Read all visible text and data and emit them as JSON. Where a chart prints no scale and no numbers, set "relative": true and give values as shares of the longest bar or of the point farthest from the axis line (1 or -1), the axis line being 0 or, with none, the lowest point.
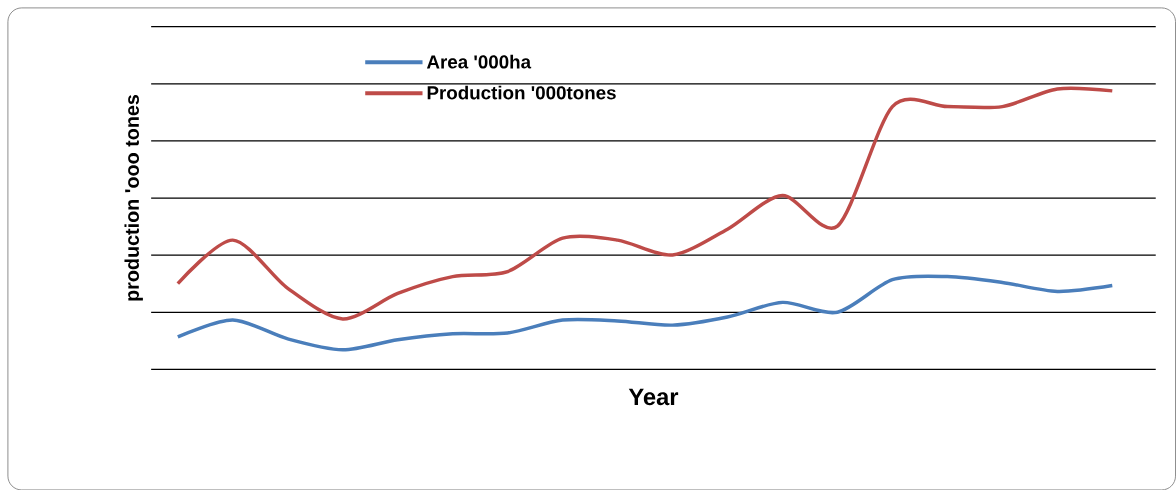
{
  "chart_data": {
    "type": "line",
    "xlabel": "Year",
    "ylabel": "production 'ooo tones",
    "relative": true,
    "grid": "y",
    "legend": "top left",
    "tick_labels": false,
    "marker": "none",
    "categories": [
      null,
      null,
      null,
      null,
      null,
      null,
      null,
      null,
      null,
      null,
      null,
      null,
      null,
      null,
      null,
      null,
      null,
      null
    ],
    "series": [
      {
        "name": "Area '000ha",
        "color": "#4a7ebb",
        "values": [
          0.116,
          0.176,
          0.109,
          0.07,
          0.106,
          0.127,
          0.13,
          0.176,
          0.173,
          0.158,
          0.187,
          0.239,
          0.204,
          0.32,
          0.331,
          0.31,
          0.278,
          0.299
        ]
      },
      {
        "name": "Production '000tones",
        "color": "#be4b48",
        "values": [
          0.306,
          0.461,
          0.289,
          0.18,
          0.271,
          0.331,
          0.349,
          0.468,
          0.461,
          0.408,
          0.5,
          0.62,
          0.511,
          0.937,
          0.937,
          0.937,
          1.0,
          0.993
        ]
      }
    ]
  }
}
